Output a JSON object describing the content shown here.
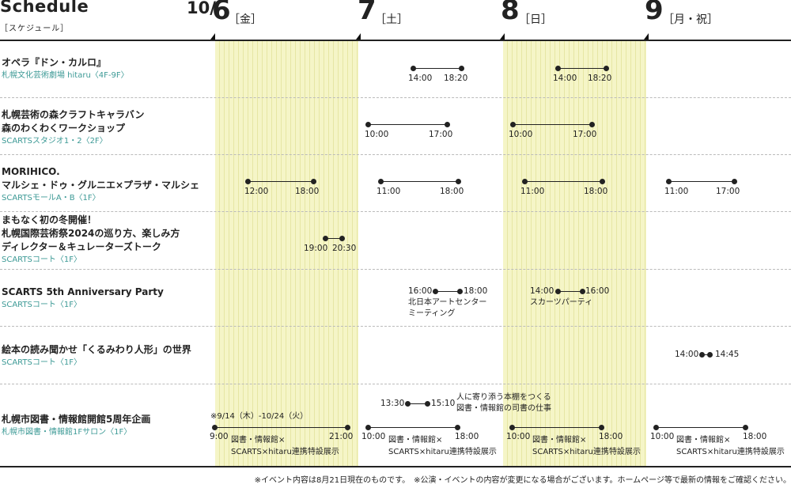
{
  "header": {
    "title": "Schedule",
    "subtitle": "［スケジュール］",
    "month": "10/",
    "days": [
      {
        "num": "6",
        "weekday": "［金］"
      },
      {
        "num": "7",
        "weekday": "［土］"
      },
      {
        "num": "8",
        "weekday": "［日］"
      },
      {
        "num": "9",
        "weekday": "［月・祝］"
      }
    ]
  },
  "events": [
    {
      "title": [
        "オペラ『ドン・カルロ』"
      ],
      "venue": "札幌文化芸術劇場 hitaru〈4F-9F〉"
    },
    {
      "title": [
        "札幌芸術の森クラフトキャラバン",
        "森のわくわくワークショップ"
      ],
      "venue": "SCARTSスタジオ1・2〈2F〉"
    },
    {
      "title": [
        "MORIHICO.",
        "マルシェ・ドゥ・グルニエ×プラザ・マルシェ"
      ],
      "venue": "SCARTSモールA・B〈1F〉"
    },
    {
      "title": [
        "まもなく初の冬開催！",
        "札幌国際芸術祭2024の巡り方、楽しみ方",
        "ディレクター＆キュレーターズトーク"
      ],
      "venue": "SCARTSコート〈1F〉"
    },
    {
      "title": [
        "SCARTS 5th Anniversary Party"
      ],
      "venue": "SCARTSコート〈1F〉"
    },
    {
      "title": [
        "絵本の読み聞かせ「くるみわり人形」の世界"
      ],
      "venue": "SCARTSコート〈1F〉"
    },
    {
      "title": [
        "札幌市図書・情報館開館5周年企画"
      ],
      "venue": "札幌市図書・情報館1Fサロン〈1F〉"
    }
  ],
  "times": {
    "opera_d7": [
      "14:00",
      "18:20"
    ],
    "opera_d8": [
      "14:00",
      "18:20"
    ],
    "craft_d7": [
      "10:00",
      "17:00"
    ],
    "craft_d8": [
      "10:00",
      "17:00"
    ],
    "marche_d6": [
      "12:00",
      "18:00"
    ],
    "marche_d7": [
      "11:00",
      "18:00"
    ],
    "marche_d8": [
      "11:00",
      "18:00"
    ],
    "marche_d9": [
      "11:00",
      "17:00"
    ],
    "talk_d6": [
      "19:00",
      "20:30"
    ],
    "party_d7": [
      "16:00",
      "18:00"
    ],
    "party_d8": [
      "14:00",
      "16:00"
    ],
    "ehon_d9": [
      "14:00",
      "14:45"
    ],
    "lib_talk": [
      "13:30",
      "15:10"
    ],
    "lib_d6": [
      "9:00",
      "21:00"
    ],
    "lib_d7": [
      "10:00",
      "18:00"
    ],
    "lib_d8": [
      "10:00",
      "18:00"
    ],
    "lib_d9": [
      "10:00",
      "18:00"
    ]
  },
  "notes": {
    "party_d7": [
      "北日本アートセンター",
      "ミーティング"
    ],
    "party_d8": "スカーツパーティ",
    "lib_talk": [
      "人に寄り添う本棚をつくる",
      "図書・情報館の司書の仕事"
    ],
    "lib_period": "※9/14（木）-10/24（火）",
    "lib_exhibit_1": "図書・情報館×",
    "lib_exhibit_2": "SCARTS×hitaru連携特設展示"
  },
  "footer": "※イベント内容は8月21日現在のものです。　※公演・イベントの内容が変更になる場合がございます。ホームページ等で最新の情報をご確認ください。"
}
